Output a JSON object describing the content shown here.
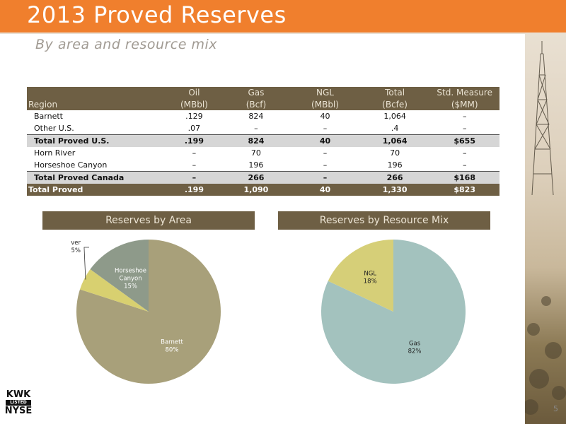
{
  "header": {
    "title": "2013 Proved Reserves",
    "subtitle": "By area and resource mix"
  },
  "table": {
    "columns": [
      {
        "name": "Oil",
        "unit": "(MBbl)"
      },
      {
        "name": "Gas",
        "unit": "(Bcf)"
      },
      {
        "name": "NGL",
        "unit": "(MBbl)"
      },
      {
        "name": "Total",
        "unit": "(Bcfe)"
      },
      {
        "name": "Std. Measure",
        "unit": "($MM)"
      }
    ],
    "region_header": "Region",
    "rows": [
      {
        "region": "Barnett",
        "values": [
          ".129",
          "824",
          "40",
          "1,064",
          "–"
        ]
      },
      {
        "region": "Other U.S.",
        "values": [
          ".07",
          "–",
          "–",
          ".4",
          "–"
        ]
      },
      {
        "region": "Total Proved U.S.",
        "values": [
          ".199",
          "824",
          "40",
          "1,064",
          "$655"
        ]
      },
      {
        "region": "Horn River",
        "values": [
          "–",
          "70",
          "–",
          "70",
          "–"
        ]
      },
      {
        "region": "Horseshoe Canyon",
        "values": [
          "–",
          "196",
          "–",
          "196",
          "–"
        ]
      },
      {
        "region": "Total Proved Canada",
        "values": [
          "–",
          "266",
          "–",
          "266",
          "$168"
        ]
      },
      {
        "region": "Total Proved",
        "values": [
          ".199",
          "1,090",
          "40",
          "1,330",
          "$823"
        ]
      }
    ]
  },
  "chart_data": [
    {
      "type": "pie",
      "title": "Reserves by Area",
      "slices": [
        {
          "label": "Barnett",
          "value": 80,
          "value_label": "80%",
          "color": "#a8a07a"
        },
        {
          "label": "Horn River",
          "value": 5,
          "value_label": "5%",
          "color": "#d8d070"
        },
        {
          "label": "Horseshoe Canyon",
          "value": 15,
          "value_label": "15%",
          "color": "#8e9a8a"
        }
      ]
    },
    {
      "type": "pie",
      "title": "Reserves by Resource Mix",
      "slices": [
        {
          "label": "Gas",
          "value": 82,
          "value_label": "82%",
          "color": "#a3c2be"
        },
        {
          "label": "NGL",
          "value": 18,
          "value_label": "18%",
          "color": "#d6cf78"
        }
      ]
    }
  ],
  "footer": {
    "page_number": "5",
    "logo": {
      "line1": "KWK",
      "line2": "LISTED",
      "line3": "NYSE"
    }
  }
}
